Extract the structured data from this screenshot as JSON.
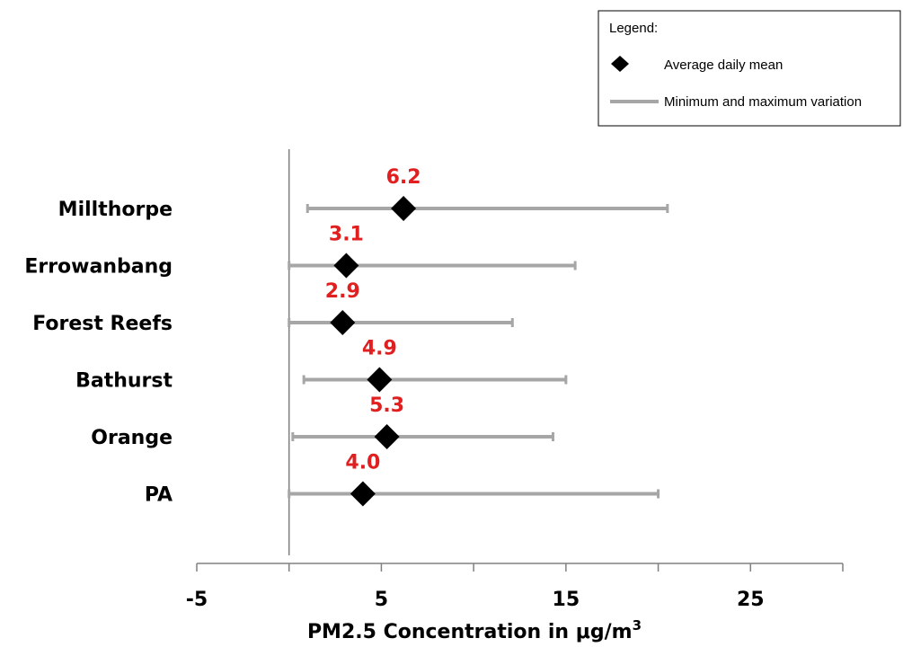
{
  "chart_data": {
    "type": "scatter",
    "categories": [
      "Millthorpe",
      "Errowanbang",
      "Forest Reefs",
      "Bathurst",
      "Orange",
      "PA"
    ],
    "mean": [
      6.2,
      3.1,
      2.9,
      4.9,
      5.3,
      4.0
    ],
    "min": [
      1.0,
      0.0,
      0.0,
      0.8,
      0.2,
      0.0
    ],
    "max": [
      20.5,
      15.5,
      12.1,
      15.0,
      14.3,
      20.0
    ],
    "value_labels": [
      "6.2",
      "3.1",
      "2.9",
      "4.9",
      "5.3",
      "4.0"
    ],
    "xlabel": "PM2.5 Concentration in μg/m",
    "xlabel_superscript": "3",
    "xlim": [
      -5,
      30
    ],
    "xticks": [
      -5,
      5,
      15,
      25
    ],
    "xtick_labels": [
      "-5",
      "5",
      "15",
      "25"
    ],
    "reference_line_x": 0,
    "grid": false,
    "legend": {
      "position": "top-right",
      "title": "Legend:",
      "items": [
        {
          "label": "Average daily mean",
          "marker": "diamond"
        },
        {
          "label": "Minimum and maximum variation",
          "marker": "line"
        }
      ]
    },
    "colors": {
      "marker": "#000000",
      "range_line": "#a6a6a6",
      "value_label": "#e02020",
      "axis": "#808080"
    }
  }
}
